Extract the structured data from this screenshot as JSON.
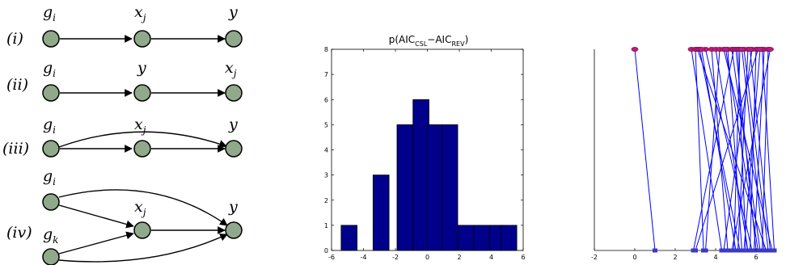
{
  "colors": {
    "node_fill": "#8fa98a",
    "bar_fill": "#00008b",
    "line_color": "#0000ff",
    "top_marker": "#c2187a",
    "bottom_marker": "#3b3bbf"
  },
  "diagram": {
    "rows": [
      {
        "roman": "(i)",
        "labels": [
          "g",
          "x",
          "y"
        ],
        "subs": [
          "i",
          "j",
          ""
        ]
      },
      {
        "roman": "(ii)",
        "labels": [
          "g",
          "y",
          "x"
        ],
        "subs": [
          "i",
          "",
          "j"
        ]
      },
      {
        "roman": "(iii)",
        "labels": [
          "g",
          "x",
          "y"
        ],
        "subs": [
          "i",
          "j",
          ""
        ]
      },
      {
        "roman": "(iv)",
        "labels": [
          "g",
          "x",
          "y",
          "g"
        ],
        "subs": [
          "i",
          "j",
          "",
          "k"
        ]
      }
    ]
  },
  "chart_data": [
    {
      "type": "bar",
      "title_parts": [
        "p(AIC",
        "CSL",
        "−AIC",
        "REV",
        ")"
      ],
      "xlim": [
        -6,
        6
      ],
      "ylim": [
        0,
        8
      ],
      "xticks": [
        -6,
        -4,
        -2,
        0,
        2,
        4,
        6
      ],
      "yticks": [
        0,
        1,
        2,
        3,
        4,
        5,
        6,
        7,
        8
      ],
      "bin_width": 1,
      "bars": [
        {
          "x0": -5.4,
          "value": 1
        },
        {
          "x0": -3.4,
          "value": 3
        },
        {
          "x0": -1.9,
          "value": 5
        },
        {
          "x0": -0.9,
          "value": 6
        },
        {
          "x0": 0.0,
          "value": 5
        },
        {
          "x0": 0.9,
          "value": 5
        },
        {
          "x0": 1.9,
          "value": 1
        },
        {
          "x0": 2.9,
          "value": 1
        },
        {
          "x0": 3.9,
          "value": 1
        },
        {
          "x0": 4.6,
          "value": 1
        }
      ]
    },
    {
      "type": "line",
      "xlim": [
        -2,
        7
      ],
      "xticks": [
        -2,
        0,
        2,
        4,
        6
      ],
      "top_y": 8,
      "bottom_y": 0,
      "pairs": [
        [
          0.0,
          1.0
        ],
        [
          2.8,
          4.3
        ],
        [
          3.0,
          3.4
        ],
        [
          3.1,
          6.5
        ],
        [
          3.2,
          5.2
        ],
        [
          3.5,
          5.8
        ],
        [
          3.8,
          4.6
        ],
        [
          4.0,
          5.6
        ],
        [
          4.2,
          3.5
        ],
        [
          4.4,
          6.8
        ],
        [
          4.6,
          5.3
        ],
        [
          4.8,
          6.2
        ],
        [
          4.9,
          2.9
        ],
        [
          5.0,
          6.0
        ],
        [
          5.1,
          5.5
        ],
        [
          5.2,
          4.9
        ],
        [
          5.4,
          6.6
        ],
        [
          5.6,
          5.1
        ],
        [
          5.8,
          4.4
        ],
        [
          6.0,
          5.7
        ],
        [
          6.1,
          3.0
        ],
        [
          6.3,
          6.9
        ],
        [
          6.4,
          5.9
        ],
        [
          6.6,
          6.3
        ],
        [
          6.7,
          4.8
        ],
        [
          5.3,
          6.4
        ],
        [
          4.5,
          6.1
        ],
        [
          3.3,
          5.0
        ],
        [
          6.2,
          5.4
        ],
        [
          5.7,
          6.7
        ]
      ]
    }
  ]
}
